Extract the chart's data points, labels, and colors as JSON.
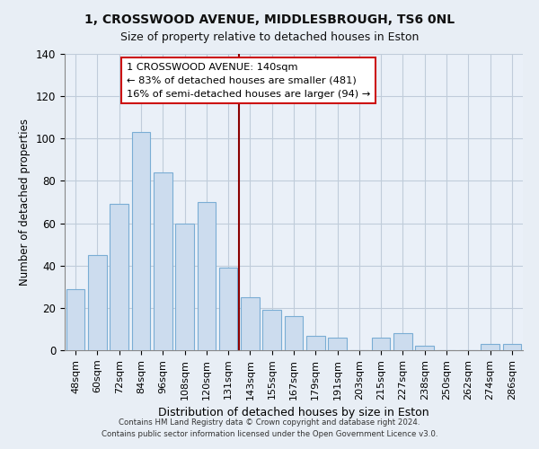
{
  "title": "1, CROSSWOOD AVENUE, MIDDLESBROUGH, TS6 0NL",
  "subtitle": "Size of property relative to detached houses in Eston",
  "xlabel": "Distribution of detached houses by size in Eston",
  "ylabel": "Number of detached properties",
  "bar_labels": [
    "48sqm",
    "60sqm",
    "72sqm",
    "84sqm",
    "96sqm",
    "108sqm",
    "120sqm",
    "131sqm",
    "143sqm",
    "155sqm",
    "167sqm",
    "179sqm",
    "191sqm",
    "203sqm",
    "215sqm",
    "227sqm",
    "238sqm",
    "250sqm",
    "262sqm",
    "274sqm",
    "286sqm"
  ],
  "bar_heights": [
    29,
    45,
    69,
    103,
    84,
    60,
    70,
    39,
    25,
    19,
    16,
    7,
    6,
    0,
    6,
    8,
    2,
    0,
    0,
    3,
    3
  ],
  "bar_color": "#ccdcee",
  "bar_edge_color": "#7aadd4",
  "ylim": [
    0,
    140
  ],
  "yticks": [
    0,
    20,
    40,
    60,
    80,
    100,
    120,
    140
  ],
  "vline_color": "#8b0000",
  "annotation_title": "1 CROSSWOOD AVENUE: 140sqm",
  "annotation_line1": "← 83% of detached houses are smaller (481)",
  "annotation_line2": "16% of semi-detached houses are larger (94) →",
  "footer_line1": "Contains HM Land Registry data © Crown copyright and database right 2024.",
  "footer_line2": "Contains public sector information licensed under the Open Government Licence v3.0.",
  "background_color": "#e8eef5",
  "plot_background_color": "#eaf0f8",
  "grid_color": "#c0ccda"
}
